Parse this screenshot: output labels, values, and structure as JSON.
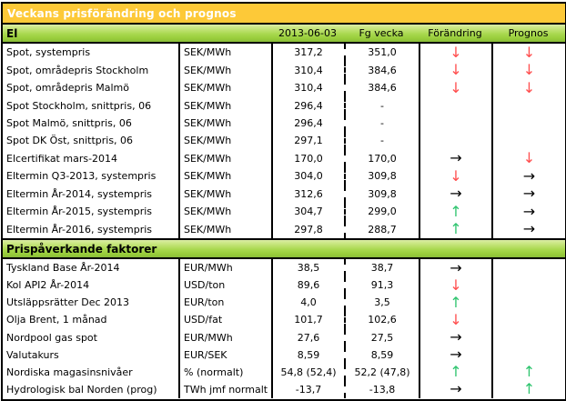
{
  "title": "Veckans prisförändring och prognos",
  "columns": {
    "date": "2013-06-03",
    "previous": "Fg vecka",
    "change": "Förändring",
    "prognosis": "Prognos"
  },
  "arrows": {
    "down": "↓",
    "up": "↑",
    "right": "→"
  },
  "colors": {
    "title_bg": "#fdc938",
    "title_text": "#ffffff",
    "band_green": "#a8d84e",
    "arrow_red": "#ff4d4d",
    "arrow_green": "#2ec46e",
    "arrow_black": "#000000"
  },
  "sections": [
    {
      "label": "El",
      "rows": [
        {
          "name": "Spot, systempris",
          "unit": "SEK/MWh",
          "current": "317,2",
          "previous": "351,0",
          "change": "down",
          "prognosis": "down"
        },
        {
          "name": "Spot, områdepris Stockholm",
          "unit": "SEK/MWh",
          "current": "310,4",
          "previous": "384,6",
          "change": "down",
          "prognosis": "down"
        },
        {
          "name": "Spot, områdepris Malmö",
          "unit": "SEK/MWh",
          "current": "310,4",
          "previous": "384,6",
          "change": "down",
          "prognosis": "down"
        },
        {
          "name": "Spot Stockholm, snittpris,  06",
          "unit": "SEK/MWh",
          "current": "296,4",
          "previous": "-",
          "change": "none",
          "prognosis": "none"
        },
        {
          "name": "Spot Malmö, snittpris,  06",
          "unit": "SEK/MWh",
          "current": "296,4",
          "previous": "-",
          "change": "none",
          "prognosis": "none"
        },
        {
          "name": "Spot DK Öst, snittpris,  06",
          "unit": "SEK/MWh",
          "current": "297,1",
          "previous": "-",
          "change": "none",
          "prognosis": "none"
        },
        {
          "name": "Elcertifikat mars-2014",
          "unit": "SEK/MWh",
          "current": "170,0",
          "previous": "170,0",
          "change": "right",
          "prognosis": "down"
        },
        {
          "name": "Eltermin Q3-2013, systempris",
          "unit": "SEK/MWh",
          "current": "304,0",
          "previous": "309,8",
          "change": "down",
          "prognosis": "right"
        },
        {
          "name": "Eltermin År-2014, systempris",
          "unit": "SEK/MWh",
          "current": "312,6",
          "previous": "309,8",
          "change": "right",
          "prognosis": "right"
        },
        {
          "name": "Eltermin År-2015, systempris",
          "unit": "SEK/MWh",
          "current": "304,7",
          "previous": "299,0",
          "change": "up",
          "prognosis": "right"
        },
        {
          "name": "Eltermin År-2016, systempris",
          "unit": "SEK/MWh",
          "current": "297,8",
          "previous": "288,7",
          "change": "up",
          "prognosis": "right"
        }
      ]
    },
    {
      "label": "Prispåverkande faktorer",
      "rows": [
        {
          "name": "Tyskland Base År-2014",
          "unit": "EUR/MWh",
          "current": "38,5",
          "previous": "38,7",
          "change": "right",
          "prognosis": "none"
        },
        {
          "name": "Kol API2 År-2014",
          "unit": "USD/ton",
          "current": "89,6",
          "previous": "91,3",
          "change": "down",
          "prognosis": "none"
        },
        {
          "name": "Utsläppsrätter Dec 2013",
          "unit": "EUR/ton",
          "current": "4,0",
          "previous": "3,5",
          "change": "up",
          "prognosis": "none"
        },
        {
          "name": "Olja Brent, 1 månad",
          "unit": "USD/fat",
          "current": "101,7",
          "previous": "102,6",
          "change": "down",
          "prognosis": "none"
        },
        {
          "name": "Nordpool gas spot",
          "unit": "EUR/MWh",
          "current": "27,6",
          "previous": "27,5",
          "change": "right",
          "prognosis": "none"
        },
        {
          "name": "Valutakurs",
          "unit": "EUR/SEK",
          "current": "8,59",
          "previous": "8,59",
          "change": "right",
          "prognosis": "none"
        },
        {
          "name": "Nordiska magasinsnivåer",
          "unit": "%   (normalt)",
          "current": "54,8 (52,4)",
          "previous": "52,2 (47,8)",
          "change": "up",
          "prognosis": "up"
        },
        {
          "name": "Hydrologisk bal Norden (prog)",
          "unit": "TWh jmf normalt",
          "current": "-13,7",
          "previous": "-13,8",
          "change": "right",
          "prognosis": "up"
        }
      ]
    }
  ]
}
